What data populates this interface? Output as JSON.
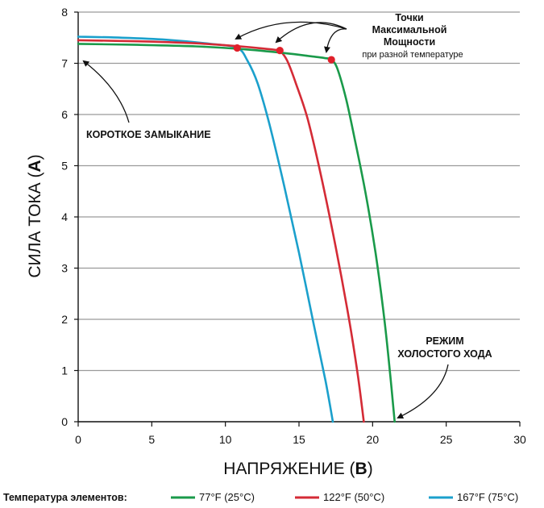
{
  "chart_data": {
    "type": "line",
    "title": "",
    "xlabel": "НАПРЯЖЕНИЕ",
    "xlabel_unit": "В",
    "ylabel": "СИЛА ТОКА",
    "ylabel_unit": "А",
    "xlim": [
      0,
      30
    ],
    "ylim": [
      0,
      8
    ],
    "xticks": [
      0,
      5,
      10,
      15,
      20,
      25,
      30
    ],
    "yticks": [
      0,
      1,
      2,
      3,
      4,
      5,
      6,
      7,
      8
    ],
    "grid": "horizontal",
    "series": [
      {
        "name": "77°F (25°C)",
        "color": "#1a9a4a",
        "x": [
          0,
          4,
          8,
          11,
          14,
          16,
          16.8,
          17.2,
          17.6,
          18.2,
          18.8,
          19.5,
          20.2,
          20.8,
          21.2,
          21.5
        ],
        "y": [
          7.38,
          7.36,
          7.33,
          7.28,
          7.2,
          7.13,
          7.1,
          7.07,
          6.9,
          6.3,
          5.5,
          4.5,
          3.3,
          2.0,
          0.9,
          0
        ]
      },
      {
        "name": "122°F (50°C)",
        "color": "#d42b36",
        "x": [
          0,
          4,
          8,
          11,
          12.5,
          13.5,
          13.7,
          14.2,
          14.8,
          15.6,
          16.5,
          17.5,
          18.4,
          19.0,
          19.4
        ],
        "y": [
          7.45,
          7.43,
          7.39,
          7.33,
          7.29,
          7.26,
          7.25,
          7.05,
          6.6,
          5.9,
          4.8,
          3.4,
          2.0,
          0.9,
          0
        ]
      },
      {
        "name": "167°F (75°C)",
        "color": "#1ba0cc",
        "x": [
          0,
          3,
          6,
          9,
          10.8,
          11.5,
          12.2,
          13.0,
          14.0,
          15.0,
          16.0,
          16.8,
          17.3
        ],
        "y": [
          7.52,
          7.5,
          7.46,
          7.38,
          7.3,
          7.05,
          6.6,
          5.8,
          4.6,
          3.3,
          1.9,
          0.8,
          0
        ]
      }
    ],
    "max_power_points": [
      {
        "x": 17.2,
        "y": 7.07
      },
      {
        "x": 13.7,
        "y": 7.25
      },
      {
        "x": 10.8,
        "y": 7.3
      }
    ],
    "marker_color": "#e0202a",
    "annotations": {
      "mpp_title_lines": [
        "Точки",
        "Максимальной",
        "Мощности"
      ],
      "mpp_subtitle": "при разной температуре",
      "short_circuit": "КОРОТКОЕ ЗАМЫКАНИЕ",
      "open_circuit_lines": [
        "РЕЖИМ",
        "ХОЛОСТОГО ХОДА"
      ]
    },
    "legend": {
      "title": "Температура элементов:",
      "placement": "bottom"
    }
  }
}
